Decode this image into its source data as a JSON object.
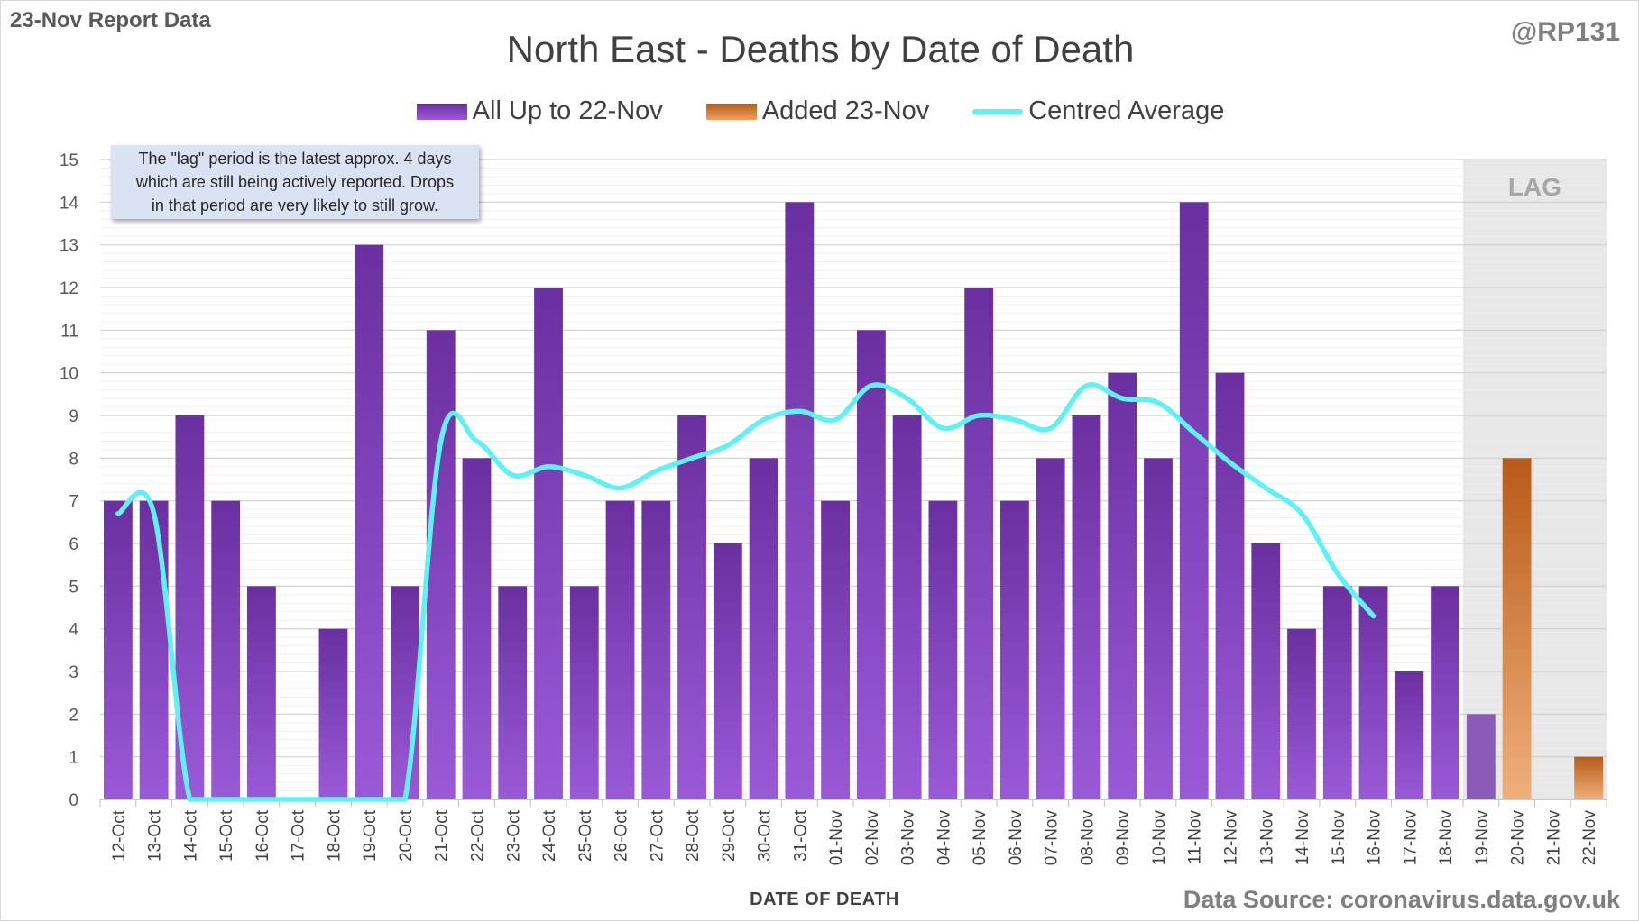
{
  "header": {
    "left_label": "23-Nov Report Data",
    "handle": "@RP131"
  },
  "footer": {
    "source": "Data Source: coronavirus.data.gov.uk"
  },
  "annotation": {
    "line1": "The \"lag\" period is the latest approx. 4 days",
    "line2": "which are still being actively reported.  Drops",
    "line3": "in that period are very likely to still grow."
  },
  "colors": {
    "bar_purple_top": "#6a2fa0",
    "bar_purple_bottom": "#9a5ad8",
    "bar_lag_purple": "#8a5cb8",
    "bar_orange_top": "#b85a18",
    "bar_orange_bottom": "#f0b07a",
    "average_line": "#5ef2f5",
    "lag_region": "#e8e8e8"
  },
  "chart_data": {
    "type": "bar",
    "title": "North East - Deaths by Date of Death",
    "xlabel": "DATE OF DEATH",
    "ylabel": "",
    "ylim": [
      0,
      15
    ],
    "grid": true,
    "legend_placement": "top-center",
    "categories": [
      "12-Oct",
      "13-Oct",
      "14-Oct",
      "15-Oct",
      "16-Oct",
      "17-Oct",
      "18-Oct",
      "19-Oct",
      "20-Oct",
      "21-Oct",
      "22-Oct",
      "23-Oct",
      "24-Oct",
      "25-Oct",
      "26-Oct",
      "27-Oct",
      "28-Oct",
      "29-Oct",
      "30-Oct",
      "31-Oct",
      "01-Nov",
      "02-Nov",
      "03-Nov",
      "04-Nov",
      "05-Nov",
      "06-Nov",
      "07-Nov",
      "08-Nov",
      "09-Nov",
      "10-Nov",
      "11-Nov",
      "12-Nov",
      "13-Nov",
      "14-Nov",
      "15-Nov",
      "16-Nov",
      "17-Nov",
      "18-Nov",
      "19-Nov",
      "20-Nov",
      "21-Nov",
      "22-Nov"
    ],
    "series": [
      {
        "name": "All Up to 22-Nov",
        "type": "bar",
        "values": [
          7,
          7,
          9,
          7,
          5,
          0,
          4,
          13,
          5,
          11,
          8,
          5,
          12,
          5,
          7,
          7,
          9,
          6,
          8,
          14,
          7,
          11,
          9,
          7,
          12,
          7,
          8,
          9,
          10,
          8,
          14,
          10,
          6,
          4,
          5,
          5,
          3,
          5,
          2,
          0,
          0,
          0
        ]
      },
      {
        "name": "Added 23-Nov",
        "type": "bar",
        "values": [
          0,
          0,
          0,
          0,
          0,
          0,
          0,
          0,
          0,
          0,
          0,
          0,
          0,
          0,
          0,
          0,
          0,
          0,
          0,
          0,
          0,
          0,
          0,
          0,
          0,
          0,
          0,
          0,
          0,
          0,
          0,
          0,
          0,
          0,
          0,
          0,
          0,
          0,
          0,
          8,
          0,
          1
        ]
      },
      {
        "name": "Centred Average",
        "type": "line",
        "values": [
          6.7,
          6.7,
          0,
          0,
          0,
          0,
          0,
          0,
          0,
          8.4,
          8.4,
          7.6,
          7.8,
          7.6,
          7.3,
          7.7,
          8.0,
          8.3,
          8.9,
          9.1,
          8.9,
          9.7,
          9.4,
          8.7,
          9.0,
          8.9,
          8.7,
          9.7,
          9.4,
          9.3,
          8.6,
          7.9,
          7.3,
          6.7,
          5.3,
          4.3,
          null,
          null,
          null,
          null,
          null,
          null
        ]
      }
    ],
    "lag_label": "LAG",
    "lag_categories": [
      "19-Nov",
      "20-Nov",
      "21-Nov",
      "22-Nov"
    ]
  }
}
